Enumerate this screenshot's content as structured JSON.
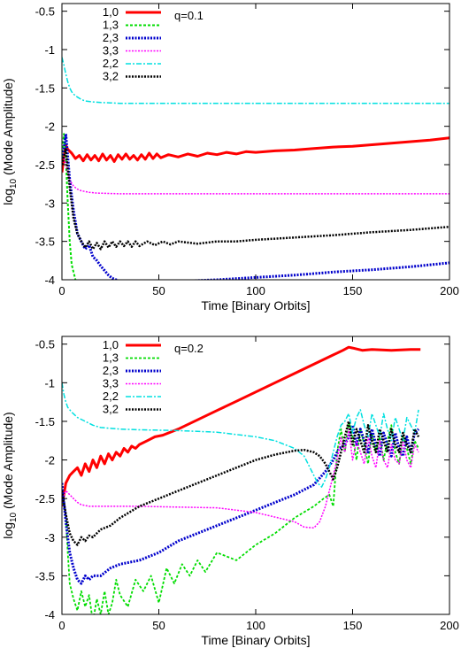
{
  "chart_data": [
    {
      "type": "line",
      "annotation": "q=0.1",
      "xlabel": "Time [Binary Orbits]",
      "ylabel_main": "log",
      "ylabel_sub": "10",
      "ylabel_rest": " (Mode Amplitude)",
      "xlim": [
        0,
        200
      ],
      "ylim": [
        -4,
        -0.4
      ],
      "xticks": [
        0,
        50,
        100,
        150,
        200
      ],
      "yticks": [
        -4,
        -3.5,
        -3,
        -2.5,
        -2,
        -1.5,
        -1,
        -0.5
      ],
      "legend_position": "top-left",
      "series": [
        {
          "name": "1,0",
          "color": "#ff0000",
          "dash": "",
          "width": 3,
          "x": [
            0,
            1,
            2,
            3,
            5,
            7,
            9,
            11,
            13,
            15,
            17,
            19,
            21,
            23,
            25,
            27,
            29,
            31,
            33,
            35,
            37,
            39,
            41,
            43,
            45,
            47,
            49,
            51,
            55,
            60,
            65,
            70,
            75,
            80,
            85,
            90,
            95,
            100,
            110,
            120,
            130,
            140,
            150,
            160,
            170,
            180,
            190,
            200
          ],
          "y": [
            -2.6,
            -2.4,
            -2.25,
            -2.3,
            -2.35,
            -2.42,
            -2.38,
            -2.45,
            -2.37,
            -2.44,
            -2.38,
            -2.45,
            -2.36,
            -2.44,
            -2.38,
            -2.46,
            -2.37,
            -2.43,
            -2.36,
            -2.43,
            -2.38,
            -2.44,
            -2.37,
            -2.43,
            -2.35,
            -2.42,
            -2.36,
            -2.41,
            -2.37,
            -2.4,
            -2.36,
            -2.39,
            -2.35,
            -2.37,
            -2.34,
            -2.36,
            -2.33,
            -2.34,
            -2.32,
            -2.31,
            -2.29,
            -2.27,
            -2.26,
            -2.24,
            -2.22,
            -2.2,
            -2.18,
            -2.15
          ]
        },
        {
          "name": "1,3",
          "color": "#00dd00",
          "dash": "3,2",
          "width": 2,
          "x": [
            0,
            1,
            2,
            3,
            4,
            5,
            6,
            7,
            8
          ],
          "y": [
            -2.4,
            -2.1,
            -2.4,
            -3.0,
            -3.5,
            -3.8,
            -3.9,
            -4.0,
            -4.1
          ]
        },
        {
          "name": "2,3",
          "color": "#0000cc",
          "dash": "2,1.5",
          "width": 3,
          "x": [
            0,
            2,
            4,
            6,
            8,
            10,
            12,
            14,
            16,
            18,
            20,
            22,
            24,
            26,
            28,
            30,
            34,
            40,
            60,
            80,
            100,
            120,
            140,
            160,
            180,
            200
          ],
          "y": [
            -2.5,
            -2.1,
            -2.7,
            -3.1,
            -3.4,
            -3.5,
            -3.6,
            -3.55,
            -3.7,
            -3.75,
            -3.82,
            -3.88,
            -3.94,
            -3.98,
            -4.0,
            -4.02,
            -4.05,
            -4.05,
            -4.02,
            -4.0,
            -3.97,
            -3.94,
            -3.9,
            -3.87,
            -3.83,
            -3.78
          ]
        },
        {
          "name": "3,3",
          "color": "#ff00ff",
          "dash": "2,1.5",
          "width": 1.5,
          "x": [
            0,
            1,
            2,
            3,
            4,
            6,
            8,
            10,
            14,
            18,
            24,
            30,
            40,
            60,
            100,
            150,
            200
          ],
          "y": [
            -2.5,
            -2.4,
            -2.5,
            -2.6,
            -2.7,
            -2.78,
            -2.82,
            -2.84,
            -2.86,
            -2.87,
            -2.875,
            -2.88,
            -2.88,
            -2.88,
            -2.88,
            -2.88,
            -2.88
          ]
        },
        {
          "name": "2,2",
          "color": "#00e0e0",
          "dash": "6,2,2,2",
          "width": 1.5,
          "x": [
            0,
            1,
            2,
            3,
            4,
            5,
            6,
            8,
            10,
            12,
            15,
            20,
            25,
            30,
            40,
            60,
            100,
            150,
            200
          ],
          "y": [
            -1.1,
            -1.2,
            -1.32,
            -1.42,
            -1.5,
            -1.55,
            -1.58,
            -1.62,
            -1.65,
            -1.67,
            -1.68,
            -1.69,
            -1.695,
            -1.7,
            -1.7,
            -1.7,
            -1.7,
            -1.7,
            -1.7
          ]
        },
        {
          "name": "3,2",
          "color": "#000000",
          "dash": "2,1.5",
          "width": 2.5,
          "x": [
            0,
            2,
            4,
            6,
            8,
            10,
            12,
            14,
            16,
            18,
            20,
            22,
            24,
            26,
            28,
            30,
            32,
            34,
            36,
            38,
            40,
            44,
            48,
            52,
            56,
            60,
            70,
            80,
            90,
            100,
            120,
            140,
            160,
            180,
            200
          ],
          "y": [
            -2.5,
            -2.3,
            -2.8,
            -3.2,
            -3.4,
            -3.5,
            -3.58,
            -3.5,
            -3.6,
            -3.52,
            -3.6,
            -3.5,
            -3.58,
            -3.5,
            -3.57,
            -3.5,
            -3.56,
            -3.5,
            -3.57,
            -3.5,
            -3.56,
            -3.5,
            -3.55,
            -3.5,
            -3.54,
            -3.5,
            -3.53,
            -3.5,
            -3.5,
            -3.48,
            -3.45,
            -3.42,
            -3.38,
            -3.35,
            -3.31
          ]
        }
      ]
    },
    {
      "type": "line",
      "annotation": "q=0.2",
      "xlabel": "Time [Binary Orbits]",
      "ylabel_main": "log",
      "ylabel_sub": "10",
      "ylabel_rest": " (Mode Amplitude)",
      "xlim": [
        0,
        200
      ],
      "ylim": [
        -4,
        -0.4
      ],
      "xticks": [
        0,
        50,
        100,
        150,
        200
      ],
      "yticks": [
        -4,
        -3.5,
        -3,
        -2.5,
        -2,
        -1.5,
        -1,
        -0.5
      ],
      "legend_position": "top-left",
      "series": [
        {
          "name": "1,0",
          "color": "#ff0000",
          "dash": "",
          "width": 3,
          "x": [
            0,
            2,
            4,
            6,
            8,
            10,
            12,
            14,
            16,
            18,
            20,
            22,
            24,
            26,
            28,
            30,
            32,
            34,
            36,
            38,
            40,
            44,
            48,
            52,
            60,
            70,
            80,
            90,
            100,
            110,
            120,
            130,
            140,
            145,
            148,
            150,
            155,
            160,
            170,
            180,
            185
          ],
          "y": [
            -2.6,
            -2.3,
            -2.2,
            -2.15,
            -2.1,
            -2.2,
            -2.05,
            -2.15,
            -2.0,
            -2.1,
            -1.95,
            -2.05,
            -1.92,
            -2.0,
            -1.9,
            -1.95,
            -1.85,
            -1.9,
            -1.82,
            -1.85,
            -1.8,
            -1.75,
            -1.7,
            -1.68,
            -1.6,
            -1.48,
            -1.36,
            -1.24,
            -1.12,
            -1.0,
            -0.88,
            -0.76,
            -0.64,
            -0.58,
            -0.54,
            -0.55,
            -0.58,
            -0.57,
            -0.58,
            -0.57,
            -0.57
          ]
        },
        {
          "name": "1,3",
          "color": "#00dd00",
          "dash": "3,2",
          "width": 1.8,
          "x": [
            0,
            2,
            3,
            4,
            6,
            8,
            10,
            12,
            14,
            16,
            18,
            20,
            22,
            24,
            26,
            28,
            30,
            34,
            38,
            42,
            46,
            50,
            54,
            58,
            62,
            66,
            70,
            74,
            80,
            90,
            100,
            110,
            120,
            130,
            135,
            138,
            140,
            142,
            144,
            146,
            148,
            150,
            152,
            154,
            156,
            158,
            160,
            162,
            164,
            166,
            168,
            170,
            172,
            174,
            176,
            178,
            180,
            182,
            184
          ],
          "y": [
            -2.5,
            -2.7,
            -3.2,
            -3.6,
            -3.8,
            -3.95,
            -3.7,
            -3.9,
            -3.75,
            -4.1,
            -3.8,
            -4.0,
            -3.7,
            -4.0,
            -3.85,
            -3.55,
            -3.75,
            -3.9,
            -3.55,
            -3.7,
            -3.5,
            -3.85,
            -3.4,
            -3.6,
            -3.35,
            -3.5,
            -3.3,
            -3.45,
            -3.2,
            -3.3,
            -3.1,
            -2.95,
            -2.75,
            -2.6,
            -2.5,
            -2.45,
            -2.6,
            -1.9,
            -1.6,
            -1.9,
            -1.5,
            -1.7,
            -2.0,
            -1.6,
            -1.8,
            -2.05,
            -1.65,
            -1.9,
            -1.7,
            -2.0,
            -1.75,
            -1.55,
            -1.9,
            -2.05,
            -1.7,
            -1.85,
            -2.05,
            -1.75,
            -1.85
          ]
        },
        {
          "name": "2,3",
          "color": "#0000cc",
          "dash": "2,1.5",
          "width": 3,
          "x": [
            0,
            2,
            4,
            6,
            8,
            10,
            12,
            14,
            16,
            20,
            25,
            30,
            40,
            50,
            60,
            70,
            80,
            90,
            100,
            110,
            120,
            130,
            136,
            140,
            143,
            146,
            148,
            150,
            152,
            154,
            156,
            158,
            160,
            162,
            164,
            166,
            168,
            170,
            172,
            174,
            176,
            178,
            180,
            182,
            184
          ],
          "y": [
            -2.3,
            -2.8,
            -3.2,
            -3.4,
            -3.55,
            -3.6,
            -3.5,
            -3.55,
            -3.5,
            -3.5,
            -3.4,
            -3.35,
            -3.3,
            -3.2,
            -3.05,
            -2.95,
            -2.85,
            -2.75,
            -2.65,
            -2.55,
            -2.45,
            -2.32,
            -2.15,
            -2.0,
            -1.85,
            -1.8,
            -1.7,
            -1.55,
            -1.8,
            -1.6,
            -1.75,
            -1.9,
            -1.6,
            -1.8,
            -1.95,
            -1.65,
            -1.8,
            -1.95,
            -1.65,
            -1.85,
            -1.95,
            -1.7,
            -1.9,
            -1.65,
            -1.6
          ]
        },
        {
          "name": "3,3",
          "color": "#ff00ff",
          "dash": "2,1.5",
          "width": 1.5,
          "x": [
            0,
            2,
            4,
            6,
            8,
            10,
            14,
            20,
            30,
            40,
            60,
            80,
            100,
            120,
            125,
            130,
            133,
            136,
            138,
            140,
            142,
            144,
            146,
            148,
            150,
            152,
            154,
            156,
            158,
            160,
            162,
            164,
            166,
            168,
            170,
            172,
            174,
            176,
            178,
            180,
            182,
            184
          ],
          "y": [
            -2.5,
            -2.4,
            -2.45,
            -2.5,
            -2.55,
            -2.58,
            -2.6,
            -2.6,
            -2.6,
            -2.6,
            -2.61,
            -2.62,
            -2.68,
            -2.8,
            -2.87,
            -2.88,
            -2.8,
            -2.6,
            -2.4,
            -2.2,
            -2.0,
            -1.7,
            -1.9,
            -1.6,
            -2.0,
            -1.75,
            -1.9,
            -2.05,
            -1.7,
            -1.95,
            -2.1,
            -1.75,
            -2.0,
            -2.1,
            -1.8,
            -2.0,
            -2.05,
            -1.75,
            -2.0,
            -2.1,
            -1.8,
            -1.9
          ]
        },
        {
          "name": "2,2",
          "color": "#00e0e0",
          "dash": "6,2,2,2",
          "width": 1.5,
          "x": [
            0,
            1,
            2,
            3,
            5,
            8,
            12,
            16,
            20,
            30,
            40,
            60,
            80,
            100,
            110,
            120,
            125,
            128,
            130,
            132,
            134,
            136,
            138,
            140,
            142,
            144,
            146,
            148,
            150,
            152,
            154,
            156,
            158,
            160,
            162,
            164,
            166,
            168,
            170,
            172,
            174,
            176,
            178,
            180,
            182,
            184
          ],
          "y": [
            -1.0,
            -1.15,
            -1.25,
            -1.32,
            -1.38,
            -1.45,
            -1.5,
            -1.55,
            -1.58,
            -1.6,
            -1.61,
            -1.62,
            -1.64,
            -1.7,
            -1.75,
            -1.85,
            -1.95,
            -2.1,
            -2.2,
            -2.3,
            -2.35,
            -2.25,
            -2.1,
            -1.9,
            -1.7,
            -1.55,
            -1.5,
            -1.4,
            -1.65,
            -1.45,
            -1.35,
            -1.55,
            -1.7,
            -1.4,
            -1.55,
            -1.7,
            -1.4,
            -1.6,
            -1.75,
            -1.45,
            -1.6,
            -1.75,
            -1.45,
            -1.55,
            -1.65,
            -1.35
          ]
        },
        {
          "name": "3,2",
          "color": "#000000",
          "dash": "2,1.5",
          "width": 2.5,
          "x": [
            0,
            2,
            4,
            6,
            8,
            10,
            12,
            14,
            16,
            18,
            20,
            25,
            30,
            40,
            50,
            60,
            70,
            80,
            90,
            100,
            110,
            120,
            125,
            130,
            133,
            136,
            138,
            140,
            142,
            144,
            146,
            148,
            150,
            152,
            154,
            156,
            158,
            160,
            162,
            164,
            166,
            168,
            170,
            172,
            174,
            176,
            178,
            180,
            182,
            184
          ],
          "y": [
            -2.4,
            -2.7,
            -2.95,
            -3.05,
            -3.1,
            -3.0,
            -3.05,
            -2.98,
            -3.0,
            -2.95,
            -2.9,
            -2.85,
            -2.75,
            -2.6,
            -2.5,
            -2.4,
            -2.3,
            -2.2,
            -2.1,
            -2.0,
            -1.93,
            -1.88,
            -1.87,
            -1.9,
            -1.95,
            -2.05,
            -2.15,
            -2.25,
            -2.1,
            -1.9,
            -1.7,
            -1.5,
            -1.8,
            -1.6,
            -1.75,
            -1.9,
            -1.55,
            -1.75,
            -1.9,
            -1.6,
            -1.75,
            -1.9,
            -1.6,
            -1.8,
            -1.9,
            -1.65,
            -1.8,
            -1.9,
            -1.6,
            -1.7
          ]
        }
      ]
    }
  ]
}
